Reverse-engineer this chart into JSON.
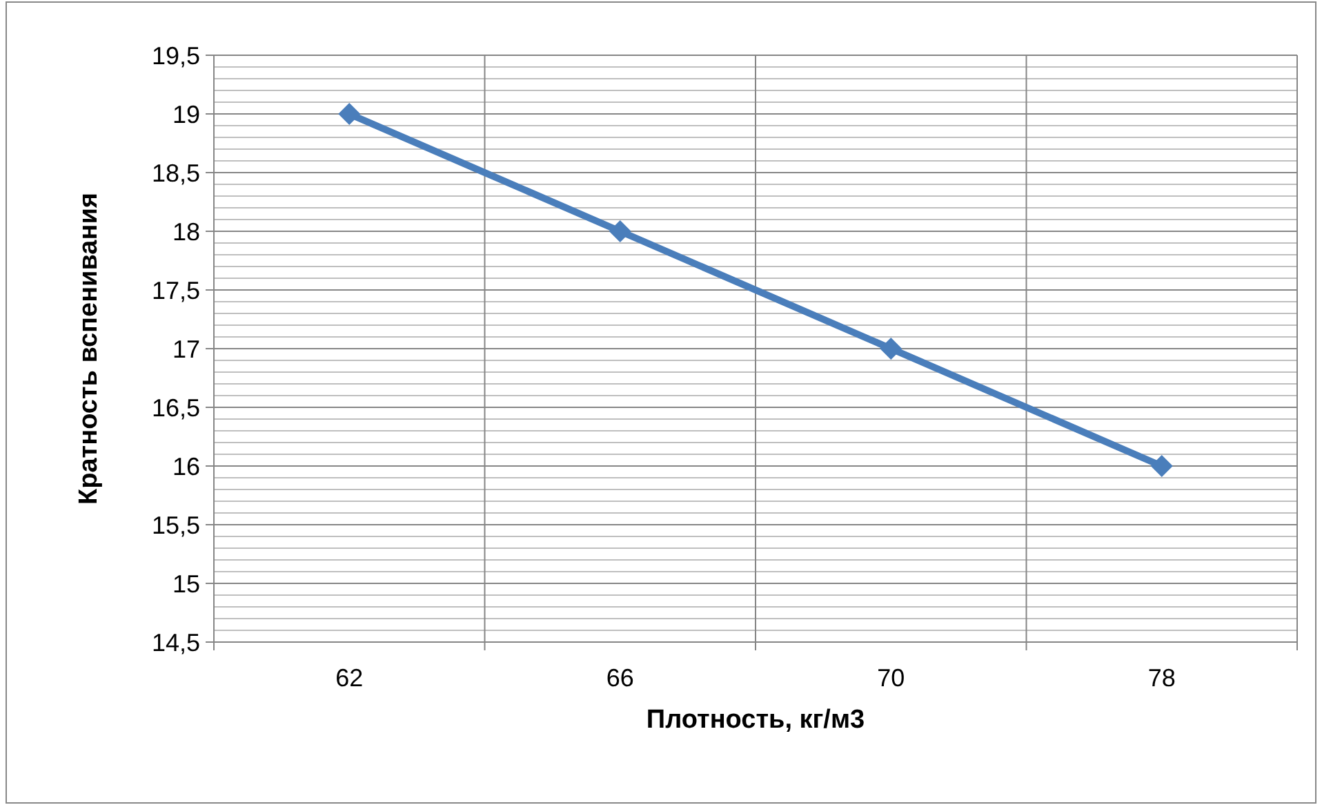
{
  "chart_data": {
    "type": "line",
    "xlabel": "Плотность, кг/м3",
    "ylabel": "Кратность вспенивания",
    "categories": [
      "62",
      "66",
      "70",
      "78"
    ],
    "series": [
      {
        "color": "#4a7ebb",
        "values": [
          19,
          18,
          17,
          16
        ]
      }
    ],
    "ylim": [
      14.5,
      19.5
    ],
    "yticks": [
      {
        "value": 14.5,
        "label": "14,5"
      },
      {
        "value": 14.6,
        "label": null
      },
      {
        "value": 14.7,
        "label": null
      },
      {
        "value": 14.8,
        "label": null
      },
      {
        "value": 14.9,
        "label": null
      },
      15,
      {
        "value": 15.1,
        "label": null
      },
      {
        "value": 15.2,
        "label": null
      },
      {
        "value": 15.3,
        "label": null
      },
      {
        "value": 15.4,
        "label": null
      },
      {
        "value": 15.5,
        "label": "15,5"
      },
      {
        "value": 15.6,
        "label": null
      },
      {
        "value": 15.7,
        "label": null
      },
      {
        "value": 15.8,
        "label": null
      },
      {
        "value": 15.9,
        "label": null
      },
      16,
      {
        "value": 16.1,
        "label": null
      },
      {
        "value": 16.2,
        "label": null
      },
      {
        "value": 16.3,
        "label": null
      },
      {
        "value": 16.4,
        "label": null
      },
      {
        "value": 16.5,
        "label": "16,5"
      },
      {
        "value": 16.6,
        "label": null
      },
      {
        "value": 16.7,
        "label": null
      },
      {
        "value": 16.8,
        "label": null
      },
      {
        "value": 16.9,
        "label": null
      },
      17,
      {
        "value": 17.1,
        "label": null
      },
      {
        "value": 17.2,
        "label": null
      },
      {
        "value": 17.3,
        "label": null
      },
      {
        "value": 17.4,
        "label": null
      },
      {
        "value": 17.5,
        "label": "17,5"
      },
      {
        "value": 17.6,
        "label": null
      },
      {
        "value": 17.7,
        "label": null
      },
      {
        "value": 17.8,
        "label": null
      },
      {
        "value": 17.9,
        "label": null
      },
      18,
      {
        "value": 18.1,
        "label": null
      },
      {
        "value": 18.2,
        "label": null
      },
      {
        "value": 18.3,
        "label": null
      },
      {
        "value": 18.4,
        "label": null
      },
      {
        "value": 18.5,
        "label": "18,5"
      },
      {
        "value": 18.6,
        "label": null
      },
      {
        "value": 18.7,
        "label": null
      },
      {
        "value": 18.8,
        "label": null
      },
      {
        "value": 18.9,
        "label": null
      },
      19,
      {
        "value": 19.1,
        "label": null
      },
      {
        "value": 19.2,
        "label": null
      },
      {
        "value": 19.3,
        "label": null
      },
      {
        "value": 19.4,
        "label": null
      },
      {
        "value": 19.5,
        "label": "19,5"
      }
    ],
    "grid": true,
    "marker": "diamond",
    "line_style": "solid"
  }
}
